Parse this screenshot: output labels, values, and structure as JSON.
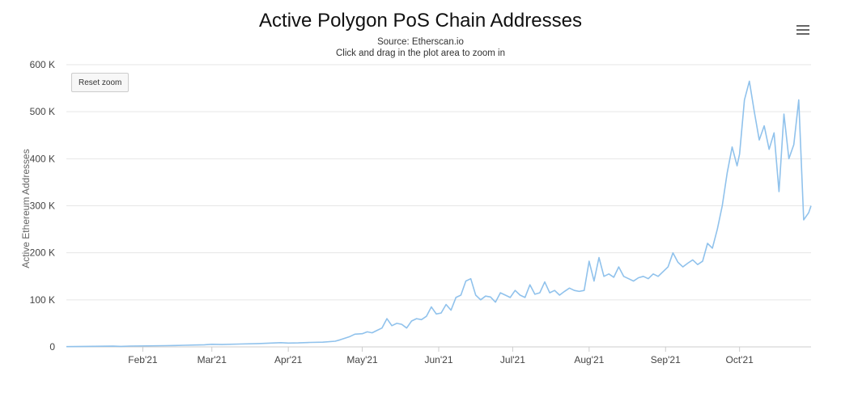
{
  "chart_data": {
    "type": "line",
    "title": "Active Polygon PoS Chain Addresses",
    "subtitle": "Source: Etherscan.io",
    "zoom_hint": "Click and drag in the plot area to zoom in",
    "xlabel": "",
    "ylabel": "Active Ethereum Addresses",
    "ylim": [
      0,
      600000
    ],
    "y_ticks": [
      0,
      100000,
      200000,
      300000,
      400000,
      500000,
      600000
    ],
    "y_tick_labels": [
      "0",
      "100 K",
      "200 K",
      "300 K",
      "400 K",
      "500 K",
      "600 K"
    ],
    "x_range": [
      "2021-01-01",
      "2021-10-30"
    ],
    "x_ticks": [
      "2021-02-01",
      "2021-03-01",
      "2021-04-01",
      "2021-05-01",
      "2021-06-01",
      "2021-07-01",
      "2021-08-01",
      "2021-09-01",
      "2021-10-01"
    ],
    "x_tick_labels": [
      "Feb'21",
      "Mar'21",
      "Apr'21",
      "May'21",
      "Jun'21",
      "Jul'21",
      "Aug'21",
      "Sep'21",
      "Oct'21"
    ],
    "grid": "horizontal",
    "legend": "none",
    "series": [
      {
        "color": "#90c2ec",
        "x": [
          "2021-01-01",
          "2021-01-20",
          "2021-01-23",
          "2021-01-27",
          "2021-02-10",
          "2021-02-14",
          "2021-02-18",
          "2021-02-22",
          "2021-02-26",
          "2021-03-01",
          "2021-03-05",
          "2021-03-12",
          "2021-03-20",
          "2021-03-25",
          "2021-03-29",
          "2021-04-01",
          "2021-04-05",
          "2021-04-10",
          "2021-04-15",
          "2021-04-20",
          "2021-04-22",
          "2021-04-26",
          "2021-04-28",
          "2021-05-01",
          "2021-05-03",
          "2021-05-05",
          "2021-05-07",
          "2021-05-09",
          "2021-05-11",
          "2021-05-13",
          "2021-05-15",
          "2021-05-17",
          "2021-05-19",
          "2021-05-21",
          "2021-05-23",
          "2021-05-25",
          "2021-05-27",
          "2021-05-29",
          "2021-05-31",
          "2021-06-02",
          "2021-06-04",
          "2021-06-06",
          "2021-06-08",
          "2021-06-10",
          "2021-06-12",
          "2021-06-14",
          "2021-06-16",
          "2021-06-18",
          "2021-06-20",
          "2021-06-22",
          "2021-06-24",
          "2021-06-26",
          "2021-06-28",
          "2021-06-30",
          "2021-07-02",
          "2021-07-04",
          "2021-07-06",
          "2021-07-08",
          "2021-07-10",
          "2021-07-12",
          "2021-07-14",
          "2021-07-16",
          "2021-07-18",
          "2021-07-20",
          "2021-07-22",
          "2021-07-24",
          "2021-07-26",
          "2021-07-28",
          "2021-07-30",
          "2021-08-01",
          "2021-08-03",
          "2021-08-05",
          "2021-08-07",
          "2021-08-09",
          "2021-08-11",
          "2021-08-13",
          "2021-08-15",
          "2021-08-17",
          "2021-08-19",
          "2021-08-21",
          "2021-08-23",
          "2021-08-25",
          "2021-08-27",
          "2021-08-29",
          "2021-08-31",
          "2021-09-02",
          "2021-09-04",
          "2021-09-06",
          "2021-09-08",
          "2021-09-10",
          "2021-09-12",
          "2021-09-14",
          "2021-09-16",
          "2021-09-18",
          "2021-09-20",
          "2021-09-22",
          "2021-09-24",
          "2021-09-26",
          "2021-09-28",
          "2021-09-30",
          "2021-10-01",
          "2021-10-03",
          "2021-10-05",
          "2021-10-07",
          "2021-10-09",
          "2021-10-11",
          "2021-10-13",
          "2021-10-15",
          "2021-10-17",
          "2021-10-19",
          "2021-10-21",
          "2021-10-23",
          "2021-10-25",
          "2021-10-27",
          "2021-10-29",
          "2021-10-30"
        ],
        "y": [
          500,
          1500,
          1000,
          1800,
          2500,
          3000,
          3500,
          4000,
          4500,
          5500,
          5000,
          6000,
          7000,
          8000,
          9000,
          8000,
          8500,
          9500,
          10000,
          12000,
          15000,
          22000,
          27000,
          28000,
          32000,
          30000,
          35000,
          40000,
          60000,
          45000,
          50000,
          48000,
          40000,
          55000,
          60000,
          58000,
          65000,
          85000,
          70000,
          72000,
          90000,
          78000,
          105000,
          110000,
          140000,
          145000,
          110000,
          100000,
          108000,
          106000,
          95000,
          115000,
          110000,
          105000,
          120000,
          110000,
          105000,
          132000,
          112000,
          115000,
          138000,
          115000,
          120000,
          110000,
          118000,
          125000,
          120000,
          118000,
          120000,
          182000,
          140000,
          190000,
          150000,
          155000,
          148000,
          170000,
          150000,
          145000,
          140000,
          147000,
          150000,
          145000,
          155000,
          150000,
          160000,
          170000,
          200000,
          180000,
          170000,
          178000,
          185000,
          175000,
          182000,
          220000,
          210000,
          250000,
          300000,
          370000,
          425000,
          385000,
          410000,
          525000,
          565000,
          500000,
          440000,
          470000,
          420000,
          455000,
          330000,
          495000,
          400000,
          430000,
          525000,
          270000,
          285000,
          300000
        ]
      }
    ]
  },
  "controls": {
    "reset_zoom_label": "Reset zoom",
    "menu_icon": "hamburger-menu-icon"
  }
}
